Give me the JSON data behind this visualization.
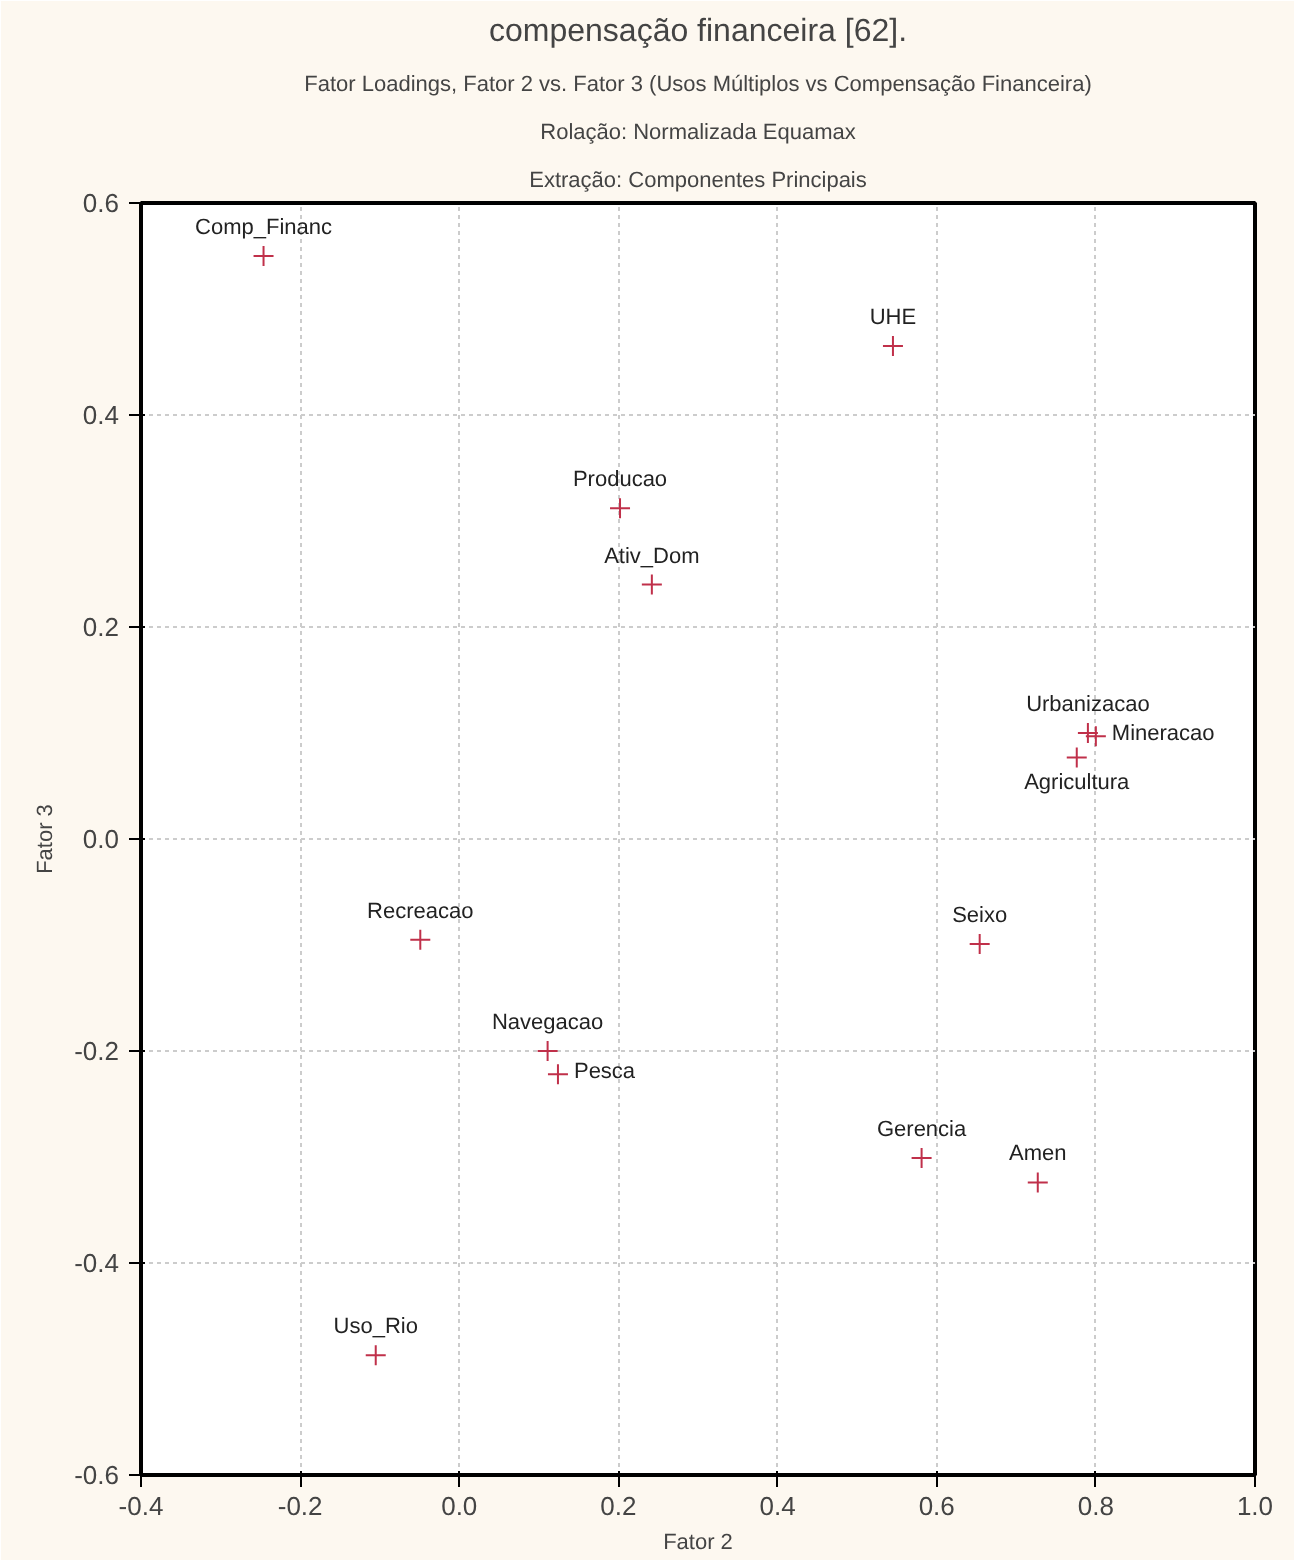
{
  "chart_data": {
    "type": "scatter",
    "title": "Fator Loadings, Fator 2 vs. Fator 3 (Usos Múltiplos vs Compensação Financeira)",
    "subtitle": "Rolação: Normalizada Equamax",
    "xlabel": "Fator 2",
    "ylabel": "Fator 3",
    "x": [
      -0.246,
      0.545,
      0.202,
      0.242,
      0.79,
      0.8,
      0.776,
      -0.049,
      0.111,
      0.124,
      -0.105,
      0.654,
      0.581,
      0.727
    ],
    "series": [
      {
        "color": "#c0304a",
        "values": [
          0.55,
          0.465,
          0.312,
          0.24,
          0.1,
          0.097,
          0.077,
          -0.095,
          -0.2,
          -0.222,
          -0.487,
          -0.099,
          -0.301,
          -0.324
        ]
      }
    ],
    "marker": "cross",
    "grid": true,
    "xlim": [
      -0.4,
      1.0
    ],
    "xticks": [
      {
        "value": -0.4,
        "label": "-0.4"
      },
      {
        "value": -0.2,
        "label": "-0.2"
      },
      {
        "value": 0,
        "label": "0.0"
      },
      {
        "value": 0.2,
        "label": "0.2"
      },
      {
        "value": 0.4,
        "label": "0.4"
      },
      {
        "value": 0.6,
        "label": "0.6"
      },
      {
        "value": 0.8,
        "label": "0.8"
      },
      {
        "value": 1,
        "label": "1.0"
      }
    ],
    "ylim": [
      -0.6,
      0.6
    ],
    "yticks": [
      {
        "value": -0.6,
        "label": "-0.6"
      },
      {
        "value": -0.4,
        "label": "-0.4"
      },
      {
        "value": -0.2,
        "label": "-0.2"
      },
      {
        "value": 0,
        "label": "0.0"
      },
      {
        "value": 0.2,
        "label": "0.2"
      },
      {
        "value": 0.4,
        "label": "0.4"
      },
      {
        "value": 0.6,
        "label": "0.6"
      }
    ],
    "annotations": [
      "compensação financeira [62].",
      "Extração: Componentes Principais",
      {
        "text": "Comp_Financ",
        "x": -0.246,
        "y": 0.55
      },
      {
        "text": "UHE",
        "x": 0.545,
        "y": 0.465
      },
      {
        "text": "Producao",
        "x": 0.202,
        "y": 0.312
      },
      {
        "text": "Ativ_Dom",
        "x": 0.242,
        "y": 0.24
      },
      {
        "text": "Urbanizacao",
        "x": 0.79,
        "y": 0.1
      },
      {
        "text": "Mineracao",
        "x": 0.8,
        "y": 0.097
      },
      {
        "text": "Agricultura",
        "x": 0.776,
        "y": 0.077
      },
      {
        "text": "Recreacao",
        "x": -0.049,
        "y": -0.095
      },
      {
        "text": "Navegacao",
        "x": 0.111,
        "y": -0.2
      },
      {
        "text": "Pesca",
        "x": 0.124,
        "y": -0.222
      },
      {
        "text": "Uso_Rio",
        "x": -0.105,
        "y": -0.487
      },
      {
        "text": "Seixo",
        "x": 0.654,
        "y": -0.099
      },
      {
        "text": "Gerencia",
        "x": 0.581,
        "y": -0.301
      },
      {
        "text": "Amen",
        "x": 0.727,
        "y": -0.324
      }
    ]
  }
}
